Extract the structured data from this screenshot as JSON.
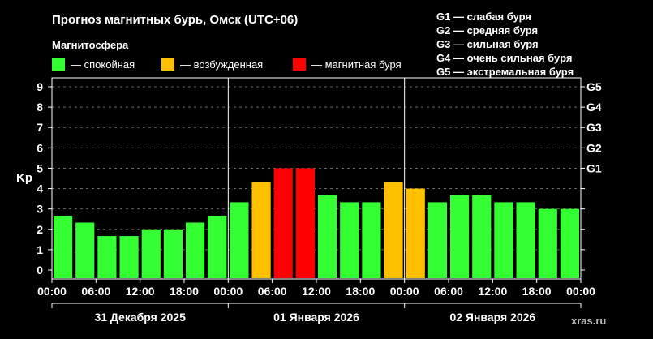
{
  "header": {
    "title": "Прогноз магнитных бурь, Омск (UTC+06)",
    "subtitle": "Магнитосфера",
    "legend": [
      {
        "label": "— спокойная",
        "color": "#33ff33"
      },
      {
        "label": "— возбужденная",
        "color": "#ffc000"
      },
      {
        "label": "— магнитная буря",
        "color": "#ff0000"
      }
    ],
    "storm_classes": [
      "G1 — слабая буря",
      "G2 — средняя буря",
      "G3 — сильная буря",
      "G4 — очень сильная буря",
      "G5 — экстремальная буря"
    ]
  },
  "source": "xras.ru",
  "chart_data": {
    "type": "bar",
    "ylabel": "Kp",
    "ylim": [
      0,
      9
    ],
    "yticks": [
      "0",
      "1",
      "2",
      "3",
      "4",
      "5",
      "6",
      "7",
      "8",
      "9"
    ],
    "right_ticks": [
      {
        "label": "G1",
        "value": 5
      },
      {
        "label": "G2",
        "value": 6
      },
      {
        "label": "G3",
        "value": 7
      },
      {
        "label": "G4",
        "value": 8
      },
      {
        "label": "G5",
        "value": 9
      }
    ],
    "xticks": [
      "00:00",
      "06:00",
      "12:00",
      "18:00",
      "00:00",
      "06:00",
      "12:00",
      "18:00",
      "00:00",
      "06:00",
      "12:00",
      "18:00",
      "00:00"
    ],
    "days": [
      "31 Декабря 2025",
      "01 Января 2026",
      "02 Января 2026"
    ],
    "grid": "horizontal dashed",
    "values": [
      2.67,
      2.33,
      1.67,
      1.67,
      2.0,
      2.0,
      2.33,
      2.67,
      3.33,
      4.33,
      5.0,
      5.0,
      3.67,
      3.33,
      3.33,
      4.33,
      4.0,
      3.33,
      3.67,
      3.67,
      3.33,
      3.33,
      3.0,
      3.0
    ],
    "levels": [
      "quiet",
      "quiet",
      "quiet",
      "quiet",
      "quiet",
      "quiet",
      "quiet",
      "quiet",
      "quiet",
      "active",
      "storm",
      "storm",
      "quiet",
      "quiet",
      "quiet",
      "active",
      "active",
      "quiet",
      "quiet",
      "quiet",
      "quiet",
      "quiet",
      "quiet",
      "quiet"
    ],
    "colors": {
      "quiet": "#33ff33",
      "active": "#ffc000",
      "storm": "#ff0000"
    }
  }
}
